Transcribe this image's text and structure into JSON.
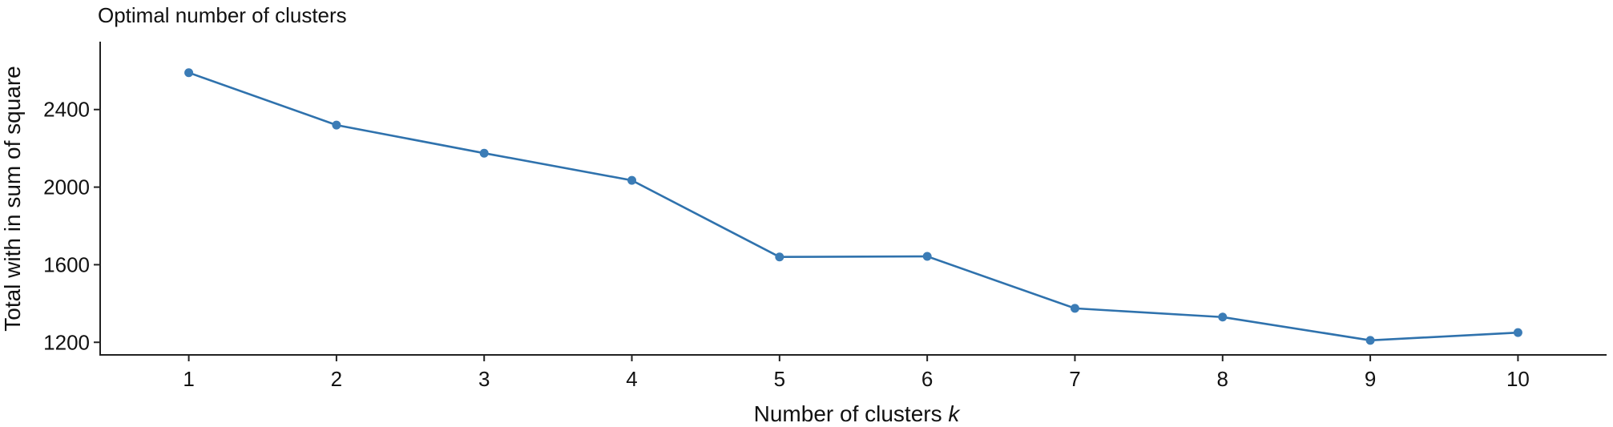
{
  "chart_data": {
    "type": "line",
    "title": "Optimal number of clusters",
    "xlabel": "Number of clusters",
    "xlabel_variable": "k",
    "ylabel": "Total with in sum of square",
    "x": [
      1,
      2,
      3,
      4,
      5,
      6,
      7,
      8,
      9,
      10
    ],
    "series": [
      {
        "values": [
          2590,
          2320,
          2175,
          2035,
          1640,
          1643,
          1375,
          1330,
          1210,
          1250
        ]
      }
    ],
    "x_ticks": [
      "1",
      "2",
      "3",
      "4",
      "5",
      "6",
      "7",
      "8",
      "9",
      "10"
    ],
    "y_ticks": [
      1200,
      1600,
      2000,
      2400
    ],
    "xlim": [
      0.4,
      10.6
    ],
    "ylim": [
      1135,
      2750
    ],
    "grid": false,
    "legend": "none",
    "colors": {
      "series": "#2f72ad",
      "point": "#3b7cb6"
    }
  }
}
